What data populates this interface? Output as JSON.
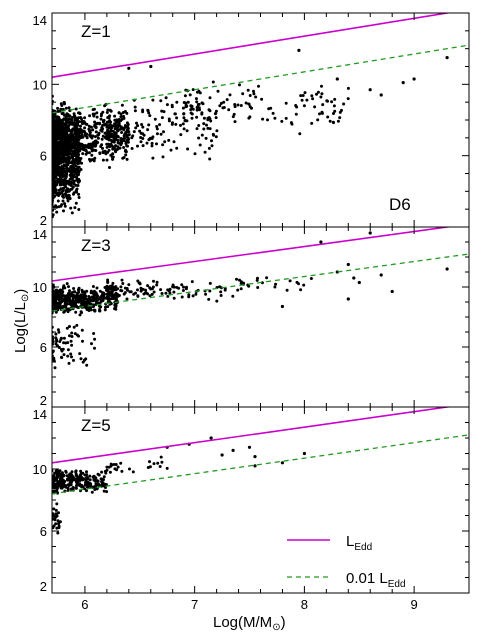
{
  "chart_data": {
    "type": "scatter",
    "xlabel": "Log(M/M",
    "xlabel_symbol": "⊙",
    "ylabel": "Log(L/L",
    "ylabel_symbol": "⊙",
    "run_label": "D6",
    "xlim": [
      5.7,
      9.5
    ],
    "ylim": [
      2,
      14
    ],
    "x_ticks": [
      6,
      7,
      8,
      9
    ],
    "y_ticks": [
      2,
      6,
      10,
      14
    ],
    "colors": {
      "eddington": "#cc00cc",
      "eddington_frac": "#229922",
      "points": "#000000"
    },
    "legend": {
      "position": "bottom-right",
      "entries": [
        {
          "label": "L",
          "sub": "Edd",
          "style": "solid"
        },
        {
          "label": "0.01 L",
          "sub": "Edd",
          "style": "dashed"
        }
      ]
    },
    "lines": [
      {
        "name": "L_Edd",
        "intercept": 10.4,
        "slope": 1.0,
        "x_range": [
          5.7,
          9.5
        ]
      },
      {
        "name": "0.01 L_Edd",
        "intercept": 8.4,
        "slope": 1.0,
        "x_range": [
          5.7,
          9.5
        ]
      }
    ],
    "panels": [
      {
        "label": "Z=1",
        "clusters": [
          {
            "x_range": [
              5.7,
              5.95
            ],
            "y_range": [
              2.2,
              9.5
            ],
            "count": 900,
            "seed": 11
          },
          {
            "x_range": [
              5.7,
              6.4
            ],
            "y_range": [
              5.0,
              9.2
            ],
            "count": 650,
            "seed": 12
          },
          {
            "x_range": [
              6.2,
              7.2
            ],
            "y_range": [
              5.5,
              9.8
            ],
            "count": 160,
            "seed": 13
          },
          {
            "x_range": [
              6.9,
              8.5
            ],
            "y_range": [
              7.0,
              10.5
            ],
            "count": 130,
            "seed": 14
          }
        ],
        "points": [
          {
            "x": 7.95,
            "y": 11.9
          },
          {
            "x": 6.4,
            "y": 10.9
          },
          {
            "x": 6.6,
            "y": 11.0
          },
          {
            "x": 9.3,
            "y": 11.5
          },
          {
            "x": 8.9,
            "y": 10.1
          },
          {
            "x": 8.6,
            "y": 9.7
          },
          {
            "x": 8.3,
            "y": 10.3
          },
          {
            "x": 9.0,
            "y": 10.3
          },
          {
            "x": 8.7,
            "y": 9.4
          }
        ]
      },
      {
        "label": "Z=3",
        "clusters": [
          {
            "x_range": [
              5.7,
              6.3
            ],
            "y_range": [
              8.0,
              10.3
            ],
            "count": 450,
            "seed": 21
          },
          {
            "x_range": [
              5.7,
              6.1
            ],
            "y_range": [
              4.2,
              8.2
            ],
            "count": 70,
            "seed": 22
          },
          {
            "x_range": [
              6.2,
              7.4
            ],
            "y_range": [
              8.8,
              10.8
            ],
            "count": 120,
            "seed": 23
          },
          {
            "x_range": [
              7.4,
              8.2
            ],
            "y_range": [
              9.5,
              11.0
            ],
            "count": 22,
            "seed": 24
          }
        ],
        "points": [
          {
            "x": 8.15,
            "y": 13.0
          },
          {
            "x": 8.6,
            "y": 13.6
          },
          {
            "x": 8.4,
            "y": 11.5
          },
          {
            "x": 8.3,
            "y": 11.0
          },
          {
            "x": 8.45,
            "y": 10.6
          },
          {
            "x": 8.7,
            "y": 10.8
          },
          {
            "x": 8.8,
            "y": 9.7
          },
          {
            "x": 7.8,
            "y": 8.7
          },
          {
            "x": 9.3,
            "y": 11.2
          },
          {
            "x": 8.5,
            "y": 10.3
          },
          {
            "x": 8.4,
            "y": 9.2
          }
        ]
      },
      {
        "label": "Z=5",
        "clusters": [
          {
            "x_range": [
              5.7,
              6.2
            ],
            "y_range": [
              8.3,
              10.2
            ],
            "count": 280,
            "seed": 31
          },
          {
            "x_range": [
              5.7,
              5.78
            ],
            "y_range": [
              5.0,
              8.6
            ],
            "count": 25,
            "seed": 32
          },
          {
            "x_range": [
              6.2,
              6.8
            ],
            "y_range": [
              9.5,
              11.0
            ],
            "count": 25,
            "seed": 33
          }
        ],
        "points": [
          {
            "x": 6.75,
            "y": 11.4
          },
          {
            "x": 6.95,
            "y": 11.6
          },
          {
            "x": 7.15,
            "y": 12.0
          },
          {
            "x": 7.35,
            "y": 11.2
          },
          {
            "x": 7.5,
            "y": 11.4
          },
          {
            "x": 7.55,
            "y": 10.8
          },
          {
            "x": 7.55,
            "y": 10.2
          },
          {
            "x": 7.8,
            "y": 10.4
          },
          {
            "x": 8.0,
            "y": 11.0
          },
          {
            "x": 7.25,
            "y": 10.9
          }
        ]
      }
    ]
  }
}
